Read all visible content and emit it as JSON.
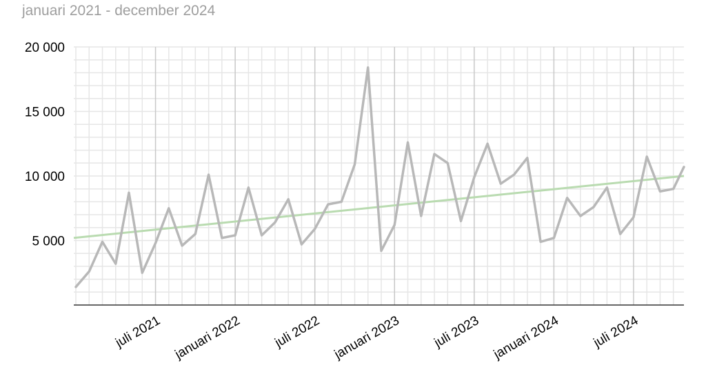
{
  "subtitle": "januari 2021 - december 2024",
  "chart_data": {
    "type": "line",
    "x_start": "2021-01",
    "x_labels": [
      "juli 2021",
      "januari 2022",
      "juli 2022",
      "januari 2023",
      "juli 2023",
      "januari 2024",
      "juli 2024"
    ],
    "x_label_months": [
      "2021-07",
      "2022-01",
      "2022-07",
      "2023-01",
      "2023-07",
      "2024-01",
      "2024-07"
    ],
    "y_ticks": [
      5000,
      10000,
      15000,
      20000
    ],
    "y_tick_labels": [
      "5 000",
      "10 000",
      "15 000",
      "20 000"
    ],
    "ylim": [
      0,
      20000
    ],
    "grid": true,
    "series": [
      {
        "values": [
          1400,
          2600,
          4900,
          3200,
          8700,
          2500,
          4800,
          7500,
          4600,
          5500,
          10100,
          5200,
          5400,
          9100,
          5400,
          6400,
          8200,
          4700,
          5900,
          7800,
          8000,
          10900,
          18400,
          4200,
          6200,
          12600,
          6900,
          11700,
          11000,
          6500,
          9900,
          12500,
          9400,
          10100,
          11400,
          4900,
          5200,
          8300,
          6900,
          7600,
          9100,
          5500,
          6800,
          11500,
          8800,
          9000,
          10700
        ],
        "color": "#b8b8b8"
      },
      {
        "type": "trend",
        "values": [
          5200,
          10000
        ],
        "color": "#b9dbb0"
      }
    ]
  }
}
